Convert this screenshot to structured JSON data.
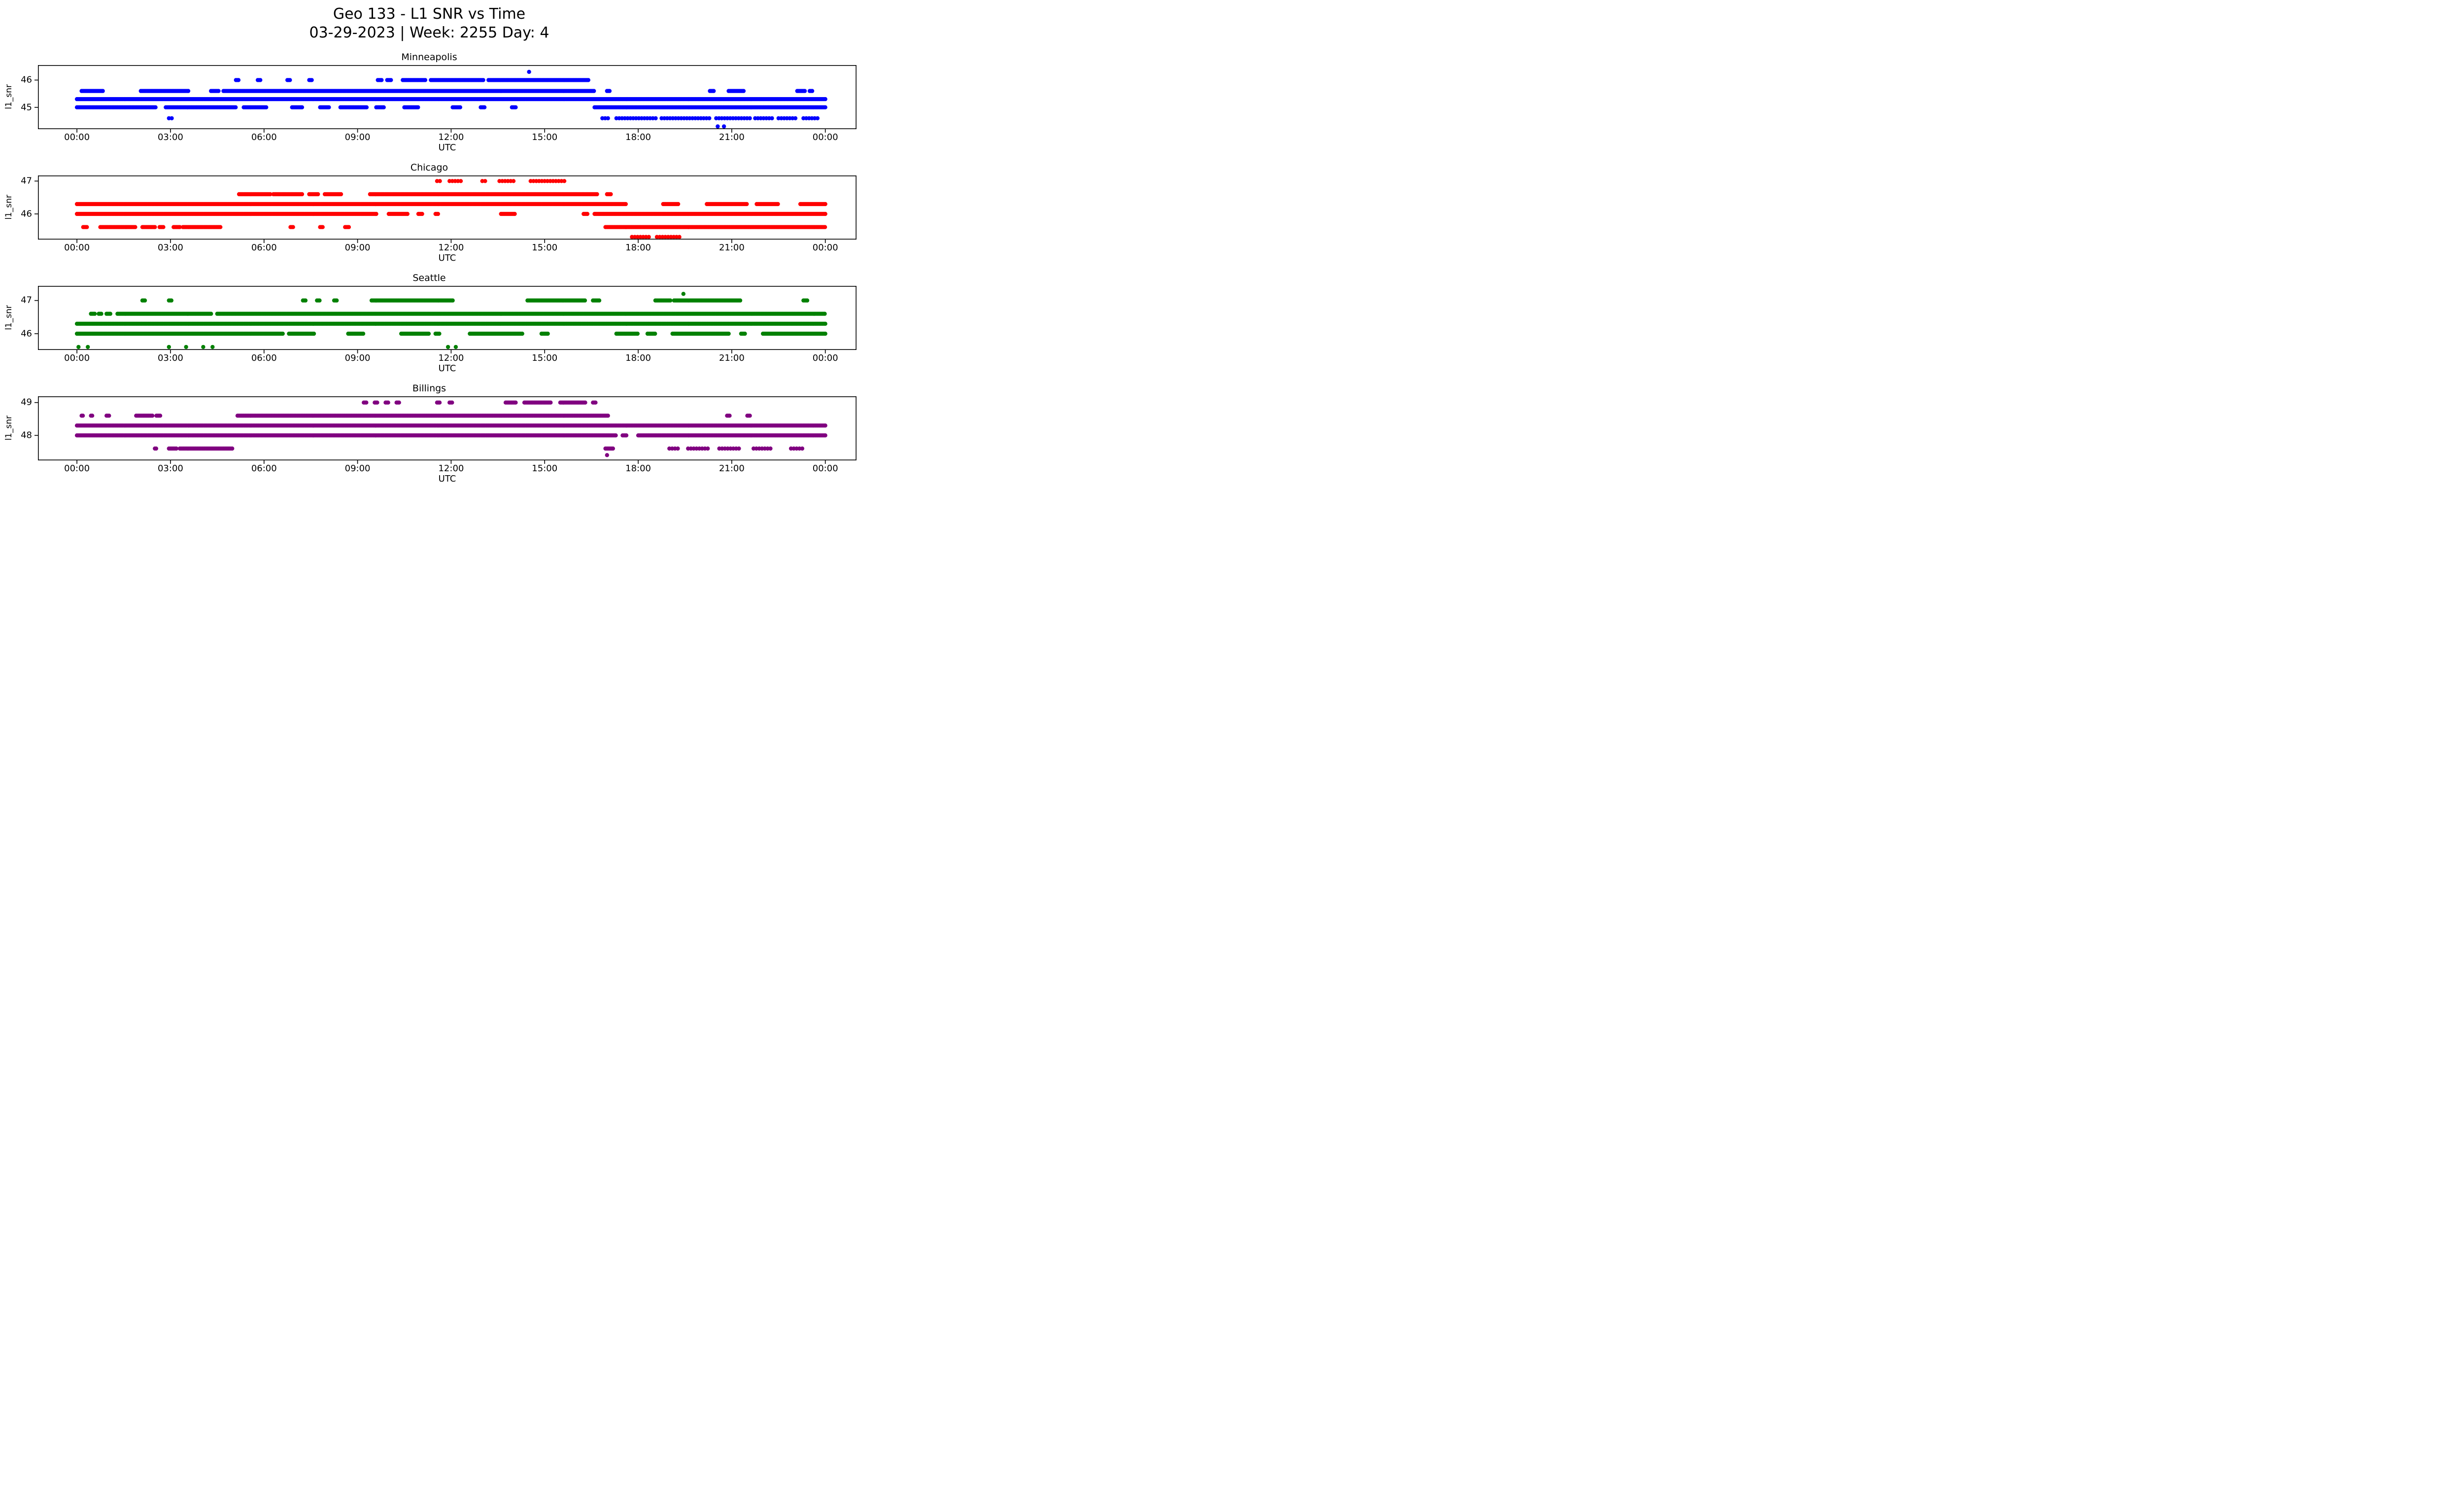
{
  "figure": {
    "suptitle_line1": "Geo 133 - L1 SNR vs Time",
    "suptitle_line2": "03-29-2023 | Week: 2255 Day: 4"
  },
  "chart_data": {
    "type": "scatter",
    "title": "Geo 133 - L1 SNR vs Time",
    "subtitle": "03-29-2023 | Week: 2255 Day: 4",
    "xlabel": "UTC",
    "ylabel": "l1_snr",
    "x_unit": "hours_utc",
    "xlim": [
      -1.25,
      25.0
    ],
    "xticks": [
      0,
      3,
      6,
      9,
      12,
      15,
      18,
      21,
      24
    ],
    "xtick_labels": [
      "00:00",
      "03:00",
      "06:00",
      "09:00",
      "12:00",
      "15:00",
      "18:00",
      "21:00",
      "00:00"
    ],
    "grid": false,
    "legend": "none",
    "marker_step_hours": {
      "dense": 0.04,
      "medium": 0.09,
      "sparse": 0.2
    },
    "subplots": [
      {
        "title": "Minneapolis",
        "color": "#0000ff",
        "ylim": [
          44.2,
          46.55
        ],
        "yticks": [
          45,
          46
        ],
        "bands": [
          {
            "snr": 46.3,
            "density": "sparse",
            "segments": [
              [
                14.5,
                14.55
              ]
            ]
          },
          {
            "snr": 46.0,
            "density": "dense",
            "segments": [
              [
                5.1,
                5.2
              ],
              [
                5.8,
                5.9
              ],
              [
                6.75,
                6.85
              ],
              [
                7.45,
                7.55
              ],
              [
                9.65,
                9.8
              ],
              [
                9.95,
                10.1
              ],
              [
                10.45,
                11.2
              ],
              [
                11.35,
                13.05
              ],
              [
                13.2,
                16.4
              ]
            ]
          },
          {
            "snr": 45.6,
            "density": "dense",
            "segments": [
              [
                0.15,
                0.85
              ],
              [
                2.05,
                3.6
              ],
              [
                4.3,
                4.55
              ],
              [
                4.7,
                16.6
              ],
              [
                17.0,
                17.1
              ],
              [
                20.3,
                20.45
              ],
              [
                20.9,
                21.4
              ],
              [
                23.1,
                23.35
              ],
              [
                23.5,
                23.6
              ]
            ]
          },
          {
            "snr": 45.3,
            "density": "dense",
            "segments": [
              [
                0.0,
                24.0
              ]
            ]
          },
          {
            "snr": 45.0,
            "density": "dense",
            "segments": [
              [
                0.0,
                2.55
              ],
              [
                2.85,
                5.1
              ],
              [
                5.35,
                6.1
              ],
              [
                6.9,
                7.25
              ],
              [
                7.8,
                8.1
              ],
              [
                8.45,
                9.3
              ],
              [
                9.6,
                9.85
              ],
              [
                10.5,
                10.95
              ],
              [
                12.05,
                12.3
              ],
              [
                12.95,
                13.1
              ],
              [
                13.95,
                14.1
              ],
              [
                16.6,
                24.0
              ]
            ]
          },
          {
            "snr": 44.6,
            "density": "medium",
            "segments": [
              [
                2.95,
                3.05
              ],
              [
                16.85,
                17.05
              ],
              [
                17.3,
                18.6
              ],
              [
                18.75,
                20.3
              ],
              [
                20.5,
                21.6
              ],
              [
                21.75,
                22.3
              ],
              [
                22.5,
                23.1
              ],
              [
                23.3,
                23.8
              ]
            ]
          },
          {
            "snr": 44.3,
            "density": "sparse",
            "segments": [
              [
                20.55,
                20.85
              ]
            ]
          }
        ]
      },
      {
        "title": "Chicago",
        "color": "#ff0000",
        "ylim": [
          45.22,
          47.17
        ],
        "yticks": [
          46,
          47
        ],
        "bands": [
          {
            "snr": 47.0,
            "density": "medium",
            "segments": [
              [
                11.55,
                11.65
              ],
              [
                11.95,
                12.35
              ],
              [
                13.0,
                13.15
              ],
              [
                13.55,
                14.05
              ],
              [
                14.55,
                15.65
              ]
            ]
          },
          {
            "snr": 46.6,
            "density": "dense",
            "segments": [
              [
                5.2,
                6.2
              ],
              [
                6.3,
                7.25
              ],
              [
                7.45,
                7.75
              ],
              [
                7.95,
                8.5
              ],
              [
                9.4,
                16.7
              ],
              [
                17.0,
                17.15
              ]
            ]
          },
          {
            "snr": 46.3,
            "density": "dense",
            "segments": [
              [
                0.0,
                17.6
              ],
              [
                18.8,
                19.3
              ],
              [
                20.2,
                21.5
              ],
              [
                21.8,
                22.5
              ],
              [
                23.2,
                24.0
              ]
            ]
          },
          {
            "snr": 46.0,
            "density": "dense",
            "segments": [
              [
                0.0,
                9.6
              ],
              [
                10.0,
                10.6
              ],
              [
                10.95,
                11.1
              ],
              [
                11.5,
                11.6
              ],
              [
                13.6,
                14.05
              ],
              [
                16.25,
                16.4
              ],
              [
                16.6,
                24.0
              ]
            ]
          },
          {
            "snr": 45.6,
            "density": "dense",
            "segments": [
              [
                0.2,
                0.35
              ],
              [
                0.75,
                1.9
              ],
              [
                2.1,
                2.5
              ],
              [
                2.65,
                2.8
              ],
              [
                3.1,
                3.3
              ],
              [
                3.4,
                4.6
              ],
              [
                6.85,
                6.95
              ],
              [
                7.8,
                7.9
              ],
              [
                8.6,
                8.75
              ],
              [
                16.95,
                24.0
              ]
            ]
          },
          {
            "snr": 45.3,
            "density": "medium",
            "segments": [
              [
                17.8,
                18.4
              ],
              [
                18.6,
                19.4
              ]
            ]
          }
        ]
      },
      {
        "title": "Seattle",
        "color": "#008000",
        "ylim": [
          45.51,
          47.44
        ],
        "yticks": [
          46,
          47
        ],
        "bands": [
          {
            "snr": 47.2,
            "density": "sparse",
            "segments": [
              [
                19.45,
                19.5
              ]
            ]
          },
          {
            "snr": 47.0,
            "density": "dense",
            "segments": [
              [
                2.1,
                2.2
              ],
              [
                2.95,
                3.05
              ],
              [
                7.25,
                7.35
              ],
              [
                7.7,
                7.8
              ],
              [
                8.25,
                8.35
              ],
              [
                9.45,
                12.05
              ],
              [
                14.45,
                16.3
              ],
              [
                16.55,
                16.75
              ],
              [
                18.55,
                19.05
              ],
              [
                19.15,
                21.3
              ],
              [
                23.3,
                23.45
              ]
            ]
          },
          {
            "snr": 46.6,
            "density": "dense",
            "segments": [
              [
                0.45,
                0.6
              ],
              [
                0.7,
                0.8
              ],
              [
                0.95,
                1.1
              ],
              [
                1.3,
                4.3
              ],
              [
                4.5,
                24.0
              ]
            ]
          },
          {
            "snr": 46.3,
            "density": "dense",
            "segments": [
              [
                0.0,
                24.0
              ]
            ]
          },
          {
            "snr": 46.0,
            "density": "dense",
            "segments": [
              [
                0.0,
                6.6
              ],
              [
                6.8,
                7.6
              ],
              [
                8.7,
                9.2
              ],
              [
                10.4,
                11.3
              ],
              [
                11.5,
                11.65
              ],
              [
                12.6,
                14.3
              ],
              [
                14.9,
                15.1
              ],
              [
                17.3,
                18.0
              ],
              [
                18.3,
                18.55
              ],
              [
                19.1,
                20.9
              ],
              [
                21.3,
                21.45
              ],
              [
                22.0,
                24.0
              ]
            ]
          },
          {
            "snr": 45.6,
            "density": "sparse",
            "segments": [
              [
                0.05,
                0.1
              ],
              [
                0.35,
                0.4
              ],
              [
                2.95,
                3.1
              ],
              [
                3.5,
                3.6
              ],
              [
                4.05,
                4.2
              ],
              [
                4.35,
                4.45
              ],
              [
                11.9,
                12.0
              ],
              [
                12.15,
                12.3
              ]
            ]
          }
        ]
      },
      {
        "title": "Billings",
        "color": "#800080",
        "ylim": [
          47.24,
          49.19
        ],
        "yticks": [
          48,
          49
        ],
        "bands": [
          {
            "snr": 49.0,
            "density": "dense",
            "segments": [
              [
                9.2,
                9.3
              ],
              [
                9.55,
                9.65
              ],
              [
                9.9,
                10.0
              ],
              [
                10.25,
                10.35
              ],
              [
                11.55,
                11.65
              ],
              [
                11.95,
                12.05
              ],
              [
                13.75,
                14.1
              ],
              [
                14.35,
                15.2
              ],
              [
                15.5,
                16.3
              ],
              [
                16.55,
                16.65
              ]
            ]
          },
          {
            "snr": 48.6,
            "density": "dense",
            "segments": [
              [
                0.15,
                0.2
              ],
              [
                0.45,
                0.5
              ],
              [
                0.95,
                1.05
              ],
              [
                1.9,
                2.45
              ],
              [
                2.55,
                2.7
              ],
              [
                5.15,
                17.05
              ],
              [
                20.85,
                20.95
              ],
              [
                21.5,
                21.6
              ]
            ]
          },
          {
            "snr": 48.3,
            "density": "dense",
            "segments": [
              [
                0.0,
                24.0
              ]
            ]
          },
          {
            "snr": 48.0,
            "density": "dense",
            "segments": [
              [
                0.0,
                17.3
              ],
              [
                17.5,
                17.65
              ],
              [
                18.0,
                24.0
              ]
            ]
          },
          {
            "snr": 47.6,
            "density": "dense",
            "segments": [
              [
                2.5,
                2.55
              ],
              [
                2.95,
                3.2
              ],
              [
                3.3,
                5.0
              ],
              [
                16.95,
                17.2
              ]
            ]
          },
          {
            "snr": 47.6,
            "density": "medium",
            "segments": [
              [
                19.0,
                19.3
              ],
              [
                19.6,
                20.3
              ],
              [
                20.6,
                21.3
              ],
              [
                21.7,
                22.3
              ],
              [
                22.9,
                23.3
              ]
            ]
          },
          {
            "snr": 47.4,
            "density": "sparse",
            "segments": [
              [
                17.0,
                17.1
              ]
            ]
          }
        ]
      }
    ]
  }
}
